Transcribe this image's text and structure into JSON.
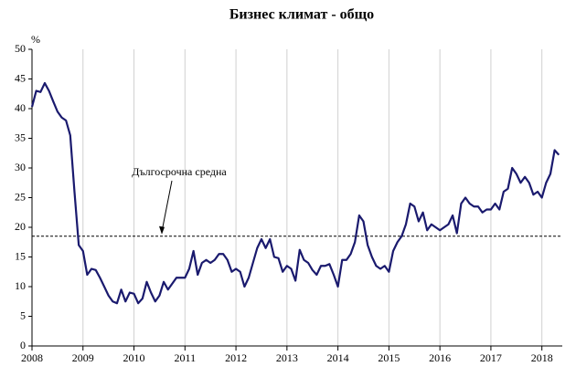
{
  "chart_data": {
    "type": "line",
    "title": "Бизнес климат - общо",
    "y_label": "%",
    "reference": {
      "value": 18.5,
      "label": "Дългосрочна средна"
    },
    "xlim": [
      2008,
      2018.4
    ],
    "xticks": [
      2008,
      2009,
      2010,
      2011,
      2012,
      2013,
      2014,
      2015,
      2016,
      2017,
      2018
    ],
    "ylim": [
      0,
      50
    ],
    "yticks": [
      0,
      5,
      10,
      15,
      20,
      25,
      30,
      35,
      40,
      45,
      50
    ],
    "grid": true,
    "x": [
      2008,
      2008.083,
      2008.167,
      2008.25,
      2008.333,
      2008.417,
      2008.5,
      2008.583,
      2008.667,
      2008.75,
      2008.833,
      2008.917,
      2009,
      2009.083,
      2009.167,
      2009.25,
      2009.333,
      2009.417,
      2009.5,
      2009.583,
      2009.667,
      2009.75,
      2009.833,
      2009.917,
      2010,
      2010.083,
      2010.167,
      2010.25,
      2010.333,
      2010.417,
      2010.5,
      2010.583,
      2010.667,
      2010.75,
      2010.833,
      2010.917,
      2011,
      2011.083,
      2011.167,
      2011.25,
      2011.333,
      2011.417,
      2011.5,
      2011.583,
      2011.667,
      2011.75,
      2011.833,
      2011.917,
      2012,
      2012.083,
      2012.167,
      2012.25,
      2012.333,
      2012.417,
      2012.5,
      2012.583,
      2012.667,
      2012.75,
      2012.833,
      2012.917,
      2013,
      2013.083,
      2013.167,
      2013.25,
      2013.333,
      2013.417,
      2013.5,
      2013.583,
      2013.667,
      2013.75,
      2013.833,
      2013.917,
      2014,
      2014.083,
      2014.167,
      2014.25,
      2014.333,
      2014.417,
      2014.5,
      2014.583,
      2014.667,
      2014.75,
      2014.833,
      2014.917,
      2015,
      2015.083,
      2015.167,
      2015.25,
      2015.333,
      2015.417,
      2015.5,
      2015.583,
      2015.667,
      2015.75,
      2015.833,
      2015.917,
      2016,
      2016.083,
      2016.167,
      2016.25,
      2016.333,
      2016.417,
      2016.5,
      2016.583,
      2016.667,
      2016.75,
      2016.833,
      2016.917,
      2017,
      2017.083,
      2017.167,
      2017.25,
      2017.333,
      2017.417,
      2017.5,
      2017.583,
      2017.667,
      2017.75,
      2017.833,
      2017.917,
      2018,
      2018.083,
      2018.167,
      2018.25,
      2018.333
    ],
    "series": [
      {
        "color": "#1a1a6e",
        "values": [
          40.3,
          43,
          42.8,
          44.3,
          43,
          41.2,
          39.5,
          38.5,
          38,
          35.5,
          26,
          17,
          16,
          12,
          13,
          12.8,
          11.5,
          10,
          8.5,
          7.5,
          7.2,
          9.5,
          7.5,
          9,
          8.8,
          7.2,
          8,
          10.8,
          9,
          7.5,
          8.5,
          10.8,
          9.5,
          10.5,
          11.5,
          11.5,
          11.5,
          13,
          16,
          12,
          14,
          14.5,
          14,
          14.5,
          15.5,
          15.5,
          14.5,
          12.5,
          13,
          12.5,
          10,
          11.5,
          14,
          16.5,
          18,
          16.5,
          18,
          15,
          14.8,
          12.5,
          13.5,
          13,
          11,
          16.2,
          14.5,
          14,
          12.8,
          12,
          13.5,
          13.5,
          13.8,
          12,
          10,
          14.5,
          14.5,
          15.5,
          17.5,
          22,
          21,
          17,
          15,
          13.5,
          13,
          13.5,
          12.5,
          16,
          17.5,
          18.5,
          20.5,
          24,
          23.5,
          21,
          22.5,
          19.5,
          20.5,
          20,
          19.5,
          20,
          20.5,
          22,
          19,
          24,
          25,
          24,
          23.5,
          23.5,
          22.5,
          23,
          23,
          24,
          23,
          26,
          26.5,
          30,
          29,
          27.5,
          28.5,
          27.5,
          25.5,
          26,
          25,
          27.5,
          29,
          33,
          32.2
        ]
      }
    ]
  }
}
